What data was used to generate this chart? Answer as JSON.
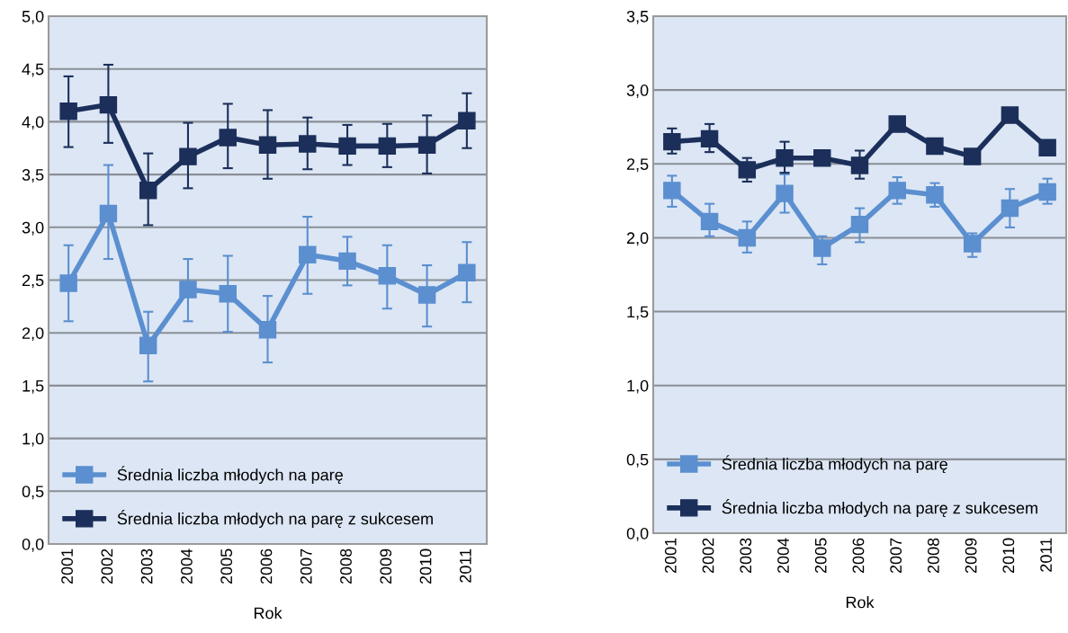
{
  "chart_data": [
    {
      "type": "line",
      "xlabel": "Rok",
      "categories": [
        "2001",
        "2002",
        "2003",
        "2004",
        "2005",
        "2006",
        "2007",
        "2008",
        "2009",
        "2010",
        "2011"
      ],
      "ylim": [
        0,
        5
      ],
      "yticks": [
        {
          "value": 0,
          "label": "0,0"
        },
        {
          "value": 0.5,
          "label": "0,5"
        },
        {
          "value": 1,
          "label": "1,0"
        },
        {
          "value": 1.5,
          "label": "1,5"
        },
        {
          "value": 2,
          "label": "2,0"
        },
        {
          "value": 2.5,
          "label": "2,5"
        },
        {
          "value": 3,
          "label": "3,0"
        },
        {
          "value": 3.5,
          "label": "3,5"
        },
        {
          "value": 4,
          "label": "4,0"
        },
        {
          "value": 4.5,
          "label": "4,5"
        },
        {
          "value": 5,
          "label": "5,0"
        }
      ],
      "grid": "y",
      "legend": "bottom left",
      "marker": "square",
      "line_style": "solid",
      "series": [
        {
          "name": "Średnia liczba młodych na parę",
          "color": "#5b8fd0",
          "values": [
            2.47,
            3.13,
            1.88,
            2.41,
            2.37,
            2.03,
            2.74,
            2.68,
            2.54,
            2.36,
            2.57
          ],
          "errors": [
            [
              2.11,
              2.83
            ],
            [
              2.7,
              3.59
            ],
            [
              1.54,
              2.2
            ],
            [
              2.11,
              2.7
            ],
            [
              2.01,
              2.73
            ],
            [
              1.72,
              2.35
            ],
            [
              2.37,
              3.1
            ],
            [
              2.45,
              2.91
            ],
            [
              2.23,
              2.83
            ],
            [
              2.06,
              2.64
            ],
            [
              2.29,
              2.86
            ]
          ]
        },
        {
          "name": "Średnia liczba młodych na parę z sukcesem",
          "color": "#1b2f5a",
          "values": [
            4.1,
            4.16,
            3.35,
            3.67,
            3.85,
            3.78,
            3.79,
            3.77,
            3.77,
            3.78,
            4.01
          ],
          "errors": [
            [
              3.76,
              4.43
            ],
            [
              3.8,
              4.54
            ],
            [
              3.02,
              3.7
            ],
            [
              3.37,
              3.99
            ],
            [
              3.56,
              4.17
            ],
            [
              3.46,
              4.11
            ],
            [
              3.55,
              4.04
            ],
            [
              3.59,
              3.97
            ],
            [
              3.57,
              3.98
            ],
            [
              3.51,
              4.06
            ],
            [
              3.75,
              4.27
            ]
          ]
        }
      ]
    },
    {
      "type": "line",
      "xlabel": "Rok",
      "categories": [
        "2001",
        "2002",
        "2003",
        "2004",
        "2005",
        "2006",
        "2007",
        "2008",
        "2009",
        "2010",
        "2011"
      ],
      "ylim": [
        0,
        3.5
      ],
      "yticks": [
        {
          "value": 0,
          "label": "0,0"
        },
        {
          "value": 0.5,
          "label": "0,5"
        },
        {
          "value": 1,
          "label": "1,0"
        },
        {
          "value": 1.5,
          "label": "1,5"
        },
        {
          "value": 2,
          "label": "2,0"
        },
        {
          "value": 2.5,
          "label": "2,5"
        },
        {
          "value": 3,
          "label": "3,0"
        },
        {
          "value": 3.5,
          "label": "3,5"
        }
      ],
      "grid": "y",
      "legend": "bottom left",
      "marker": "square",
      "line_style": "solid",
      "series": [
        {
          "name": "Średnia liczba młodych na parę",
          "color": "#5b8fd0",
          "values": [
            2.32,
            2.11,
            2.0,
            2.3,
            1.93,
            2.09,
            2.32,
            2.29,
            1.96,
            2.2,
            2.31
          ],
          "errors": [
            [
              2.21,
              2.42
            ],
            [
              2.01,
              2.23
            ],
            [
              1.9,
              2.11
            ],
            [
              2.17,
              2.43
            ],
            [
              1.82,
              2.01
            ],
            [
              1.97,
              2.2
            ],
            [
              2.23,
              2.41
            ],
            [
              2.21,
              2.37
            ],
            [
              1.87,
              2.03
            ],
            [
              2.07,
              2.33
            ],
            [
              2.23,
              2.4
            ]
          ]
        },
        {
          "name": "Średnia liczba młodych na parę z sukcesem",
          "color": "#1b2f5a",
          "values": [
            2.65,
            2.67,
            2.46,
            2.54,
            2.54,
            2.49,
            2.77,
            2.62,
            2.55,
            2.83,
            2.61
          ],
          "errors": [
            [
              2.57,
              2.74
            ],
            [
              2.58,
              2.77
            ],
            [
              2.38,
              2.54
            ],
            [
              2.44,
              2.65
            ],
            null,
            [
              2.4,
              2.59
            ],
            null,
            null,
            null,
            null,
            null
          ]
        }
      ]
    }
  ]
}
